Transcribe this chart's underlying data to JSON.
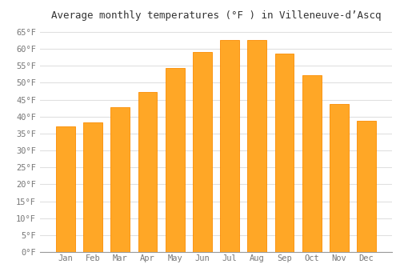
{
  "title": "Average monthly temperatures (°F ) in Villeneuve-d’Ascq",
  "months": [
    "Jan",
    "Feb",
    "Mar",
    "Apr",
    "May",
    "Jun",
    "Jul",
    "Aug",
    "Sep",
    "Oct",
    "Nov",
    "Dec"
  ],
  "values": [
    37.0,
    38.3,
    42.8,
    47.3,
    54.3,
    59.2,
    62.6,
    62.6,
    58.6,
    52.2,
    43.7,
    38.8
  ],
  "bar_color": "#FFA726",
  "bar_edge_color": "#FB8C00",
  "ylim": [
    0,
    67
  ],
  "yticks": [
    0,
    5,
    10,
    15,
    20,
    25,
    30,
    35,
    40,
    45,
    50,
    55,
    60,
    65
  ],
  "background_color": "#ffffff",
  "grid_color": "#e0e0e0",
  "title_fontsize": 9,
  "tick_fontsize": 7.5,
  "font_family": "monospace"
}
